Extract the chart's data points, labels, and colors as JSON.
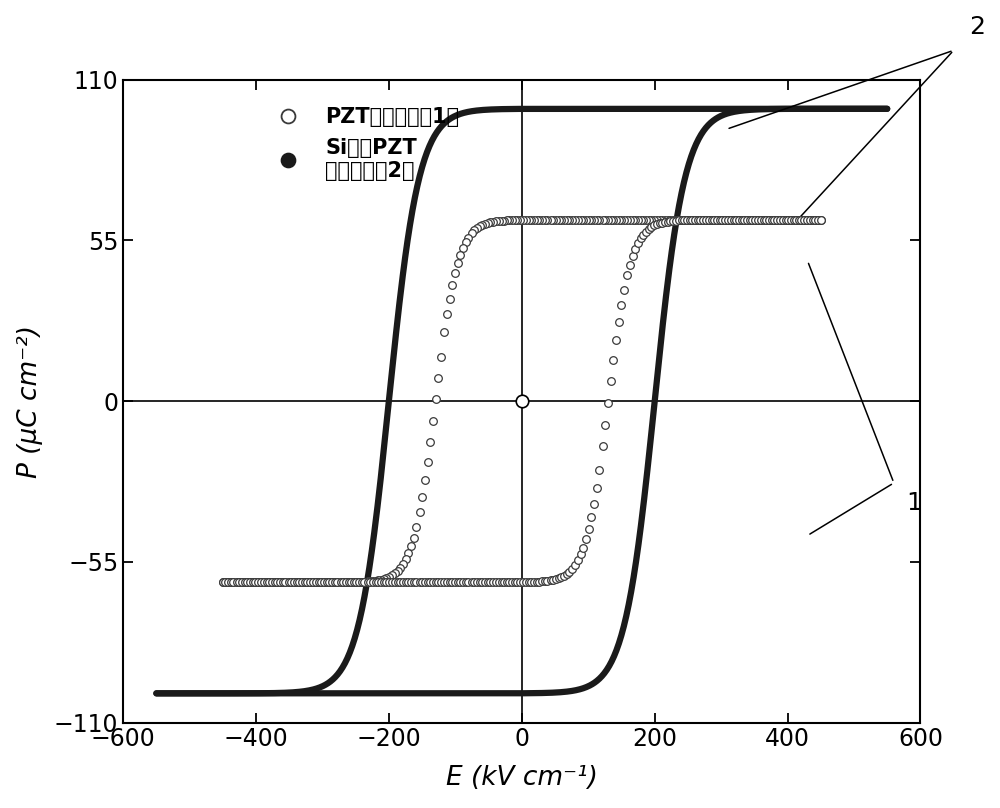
{
  "xlabel": "E (kV cm⁻¹)",
  "ylabel": "P (μC cm⁻²)",
  "xlim": [
    -600,
    600
  ],
  "ylim": [
    -110,
    110
  ],
  "xticks": [
    -600,
    -400,
    -200,
    0,
    200,
    400,
    600
  ],
  "yticks": [
    -110,
    -55,
    0,
    55,
    110
  ],
  "legend_label1": "PZT（附图标记1）",
  "legend_label2": "Si掺杂PZT\n（附图标记2）",
  "pzt_color": "#3a3a3a",
  "sipzt_color": "#1a1a1a",
  "background_color": "#ffffff",
  "pzt_Psat": 62,
  "pzt_Ec": 130,
  "pzt_Emax": 450,
  "sipzt_Psat": 100,
  "sipzt_Ec": 200,
  "sipzt_Emax": 550,
  "ann2_label": "2",
  "ann1_label": "1"
}
